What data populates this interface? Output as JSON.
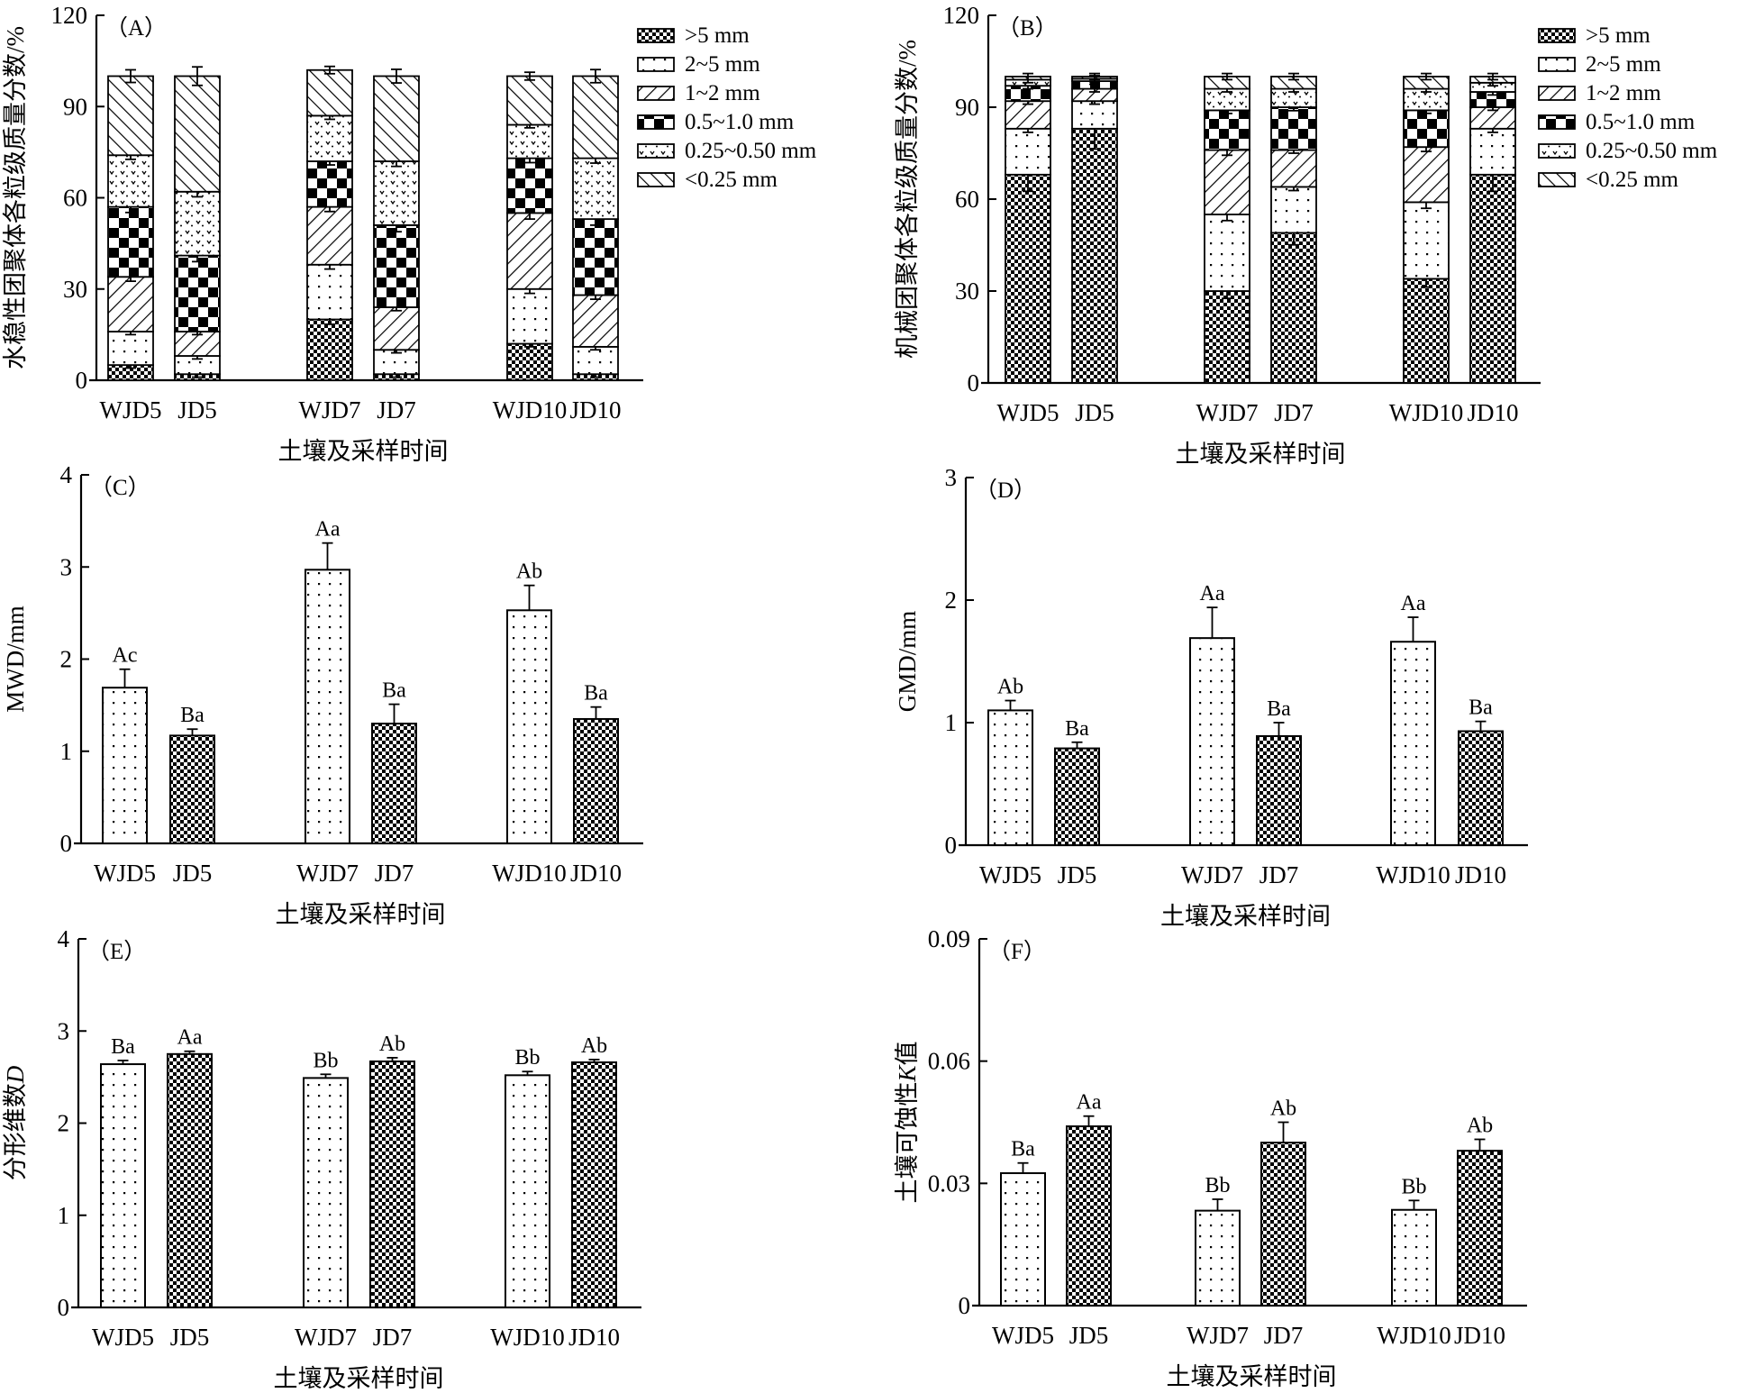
{
  "figure": {
    "categories": [
      "WJD5",
      "JD5",
      "WJD7",
      "JD7",
      "WJD10",
      "JD10"
    ],
    "patterns": {
      "gt5": "dense-checker",
      "2to5": "sparse-dots",
      "1to2": "forward-hatch",
      "0.5to1": "large-checker",
      "0.25to0.5": "v-dots",
      "lt0.25": "back-hatch",
      "WJD": "sparse-dots",
      "JD": "dense-checker"
    }
  },
  "chart_data": [
    {
      "id": "A",
      "type": "bar",
      "stacked": true,
      "panel_label": "（A）",
      "title": "",
      "xlabel": "土壤及采样时间",
      "ylabel": "水稳性团聚体各粒级质量分数/%",
      "ylim": [
        0,
        120
      ],
      "yticks": [
        "0",
        "30",
        "60",
        "90",
        "120"
      ],
      "ytick_values": [
        0,
        30,
        60,
        90,
        120
      ],
      "categories": [
        "WJD5",
        "JD5",
        "WJD7",
        "JD7",
        "WJD10",
        "JD10"
      ],
      "legend_position": "top-right",
      "series": [
        {
          "name": ">5 mm",
          "key": "gt5",
          "values": [
            5,
            2,
            20,
            2,
            12,
            2
          ]
        },
        {
          "name": "2~5 mm",
          "key": "2to5",
          "values": [
            11,
            6,
            18,
            8,
            18,
            9
          ]
        },
        {
          "name": "1~2 mm",
          "key": "1to2",
          "values": [
            18,
            8,
            19,
            14,
            25,
            17
          ]
        },
        {
          "name": "0.5~1.0 mm",
          "key": "0.5to1",
          "values": [
            23,
            25,
            15,
            27,
            18,
            25
          ]
        },
        {
          "name": "0.25~0.50 mm",
          "key": "0.25to0.5",
          "values": [
            17,
            21,
            15,
            21,
            11,
            20
          ]
        },
        {
          "name": "<0.25 mm",
          "key": "lt0.25",
          "values": [
            26,
            38,
            15,
            28,
            16,
            27
          ]
        }
      ]
    },
    {
      "id": "B",
      "type": "bar",
      "stacked": true,
      "panel_label": "（B）",
      "title": "",
      "xlabel": "土壤及采样时间",
      "ylabel": "机械团聚体各粒级质量分数/%",
      "ylim": [
        0,
        120
      ],
      "yticks": [
        "0",
        "30",
        "60",
        "90",
        "120"
      ],
      "ytick_values": [
        0,
        30,
        60,
        90,
        120
      ],
      "categories": [
        "WJD5",
        "JD5",
        "WJD7",
        "JD7",
        "WJD10",
        "JD10"
      ],
      "legend_position": "top-right",
      "series": [
        {
          "name": ">5 mm",
          "key": "gt5",
          "values": [
            68,
            83,
            30,
            49,
            34,
            68
          ]
        },
        {
          "name": "2~5 mm",
          "key": "2to5",
          "values": [
            15,
            9,
            25,
            15,
            25,
            15
          ]
        },
        {
          "name": "1~2 mm",
          "key": "1to2",
          "values": [
            9,
            4,
            21,
            12,
            18,
            7
          ]
        },
        {
          "name": "0.5~1.0 mm",
          "key": "0.5to1",
          "values": [
            5,
            2.5,
            13,
            14,
            12,
            5
          ]
        },
        {
          "name": "0.25~0.50 mm",
          "key": "0.25to0.5",
          "values": [
            2,
            0.8,
            7,
            6,
            7,
            3
          ]
        },
        {
          "name": "<0.25 mm",
          "key": "lt0.25",
          "values": [
            1,
            0.7,
            4,
            4,
            4,
            2
          ]
        }
      ]
    },
    {
      "id": "C",
      "type": "bar",
      "panel_label": "（C）",
      "title": "",
      "xlabel": "土壤及采样时间",
      "ylabel": "MWD/mm",
      "ylim": [
        0,
        4
      ],
      "yticks": [
        "0",
        "1",
        "2",
        "3",
        "4"
      ],
      "ytick_values": [
        0,
        1,
        2,
        3,
        4
      ],
      "categories": [
        "WJD5",
        "JD5",
        "WJD7",
        "JD7",
        "WJD10",
        "JD10"
      ],
      "values": [
        1.69,
        1.17,
        2.97,
        1.3,
        2.53,
        1.35
      ],
      "errors": [
        0.2,
        0.07,
        0.29,
        0.21,
        0.27,
        0.13
      ],
      "labels": [
        "Ac",
        "Ba",
        "Aa",
        "Ba",
        "Ab",
        "Ba"
      ]
    },
    {
      "id": "D",
      "type": "bar",
      "panel_label": "（D）",
      "title": "",
      "xlabel": "土壤及采样时间",
      "ylabel": "GMD/mm",
      "ylim": [
        0,
        3
      ],
      "yticks": [
        "0",
        "1",
        "2",
        "3"
      ],
      "ytick_values": [
        0,
        1,
        2,
        3
      ],
      "categories": [
        "WJD5",
        "JD5",
        "WJD7",
        "JD7",
        "WJD10",
        "JD10"
      ],
      "values": [
        1.1,
        0.79,
        1.69,
        0.89,
        1.66,
        0.93
      ],
      "errors": [
        0.08,
        0.05,
        0.25,
        0.11,
        0.2,
        0.08
      ],
      "labels": [
        "Ab",
        "Ba",
        "Aa",
        "Ba",
        "Aa",
        "Ba"
      ]
    },
    {
      "id": "E",
      "type": "bar",
      "panel_label": "（E）",
      "title": "",
      "xlabel": "土壤及采样时间",
      "ylabel": "分形维数D",
      "ylabel_italic_suffix": "D",
      "ylim": [
        0,
        4
      ],
      "yticks": [
        "0",
        "1",
        "2",
        "3",
        "4"
      ],
      "ytick_values": [
        0,
        1,
        2,
        3,
        4
      ],
      "categories": [
        "WJD5",
        "JD5",
        "WJD7",
        "JD7",
        "WJD10",
        "JD10"
      ],
      "values": [
        2.64,
        2.75,
        2.49,
        2.67,
        2.52,
        2.66
      ],
      "errors": [
        0.04,
        0.03,
        0.04,
        0.04,
        0.04,
        0.03
      ],
      "labels": [
        "Ba",
        "Aa",
        "Bb",
        "Ab",
        "Bb",
        "Ab"
      ]
    },
    {
      "id": "F",
      "type": "bar",
      "panel_label": "（F）",
      "title": "",
      "xlabel": "土壤及采样时间",
      "ylabel": "土壤可蚀性K值",
      "ylabel_italic_part": "K",
      "ylim": [
        0,
        0.09
      ],
      "yticks": [
        "0",
        "0.03",
        "0.06",
        "0.09"
      ],
      "ytick_values": [
        0,
        0.03,
        0.06,
        0.09
      ],
      "categories": [
        "WJD5",
        "JD5",
        "WJD7",
        "JD7",
        "WJD10",
        "JD10"
      ],
      "values": [
        0.0325,
        0.044,
        0.0233,
        0.04,
        0.0235,
        0.038
      ],
      "errors": [
        0.0025,
        0.0025,
        0.0028,
        0.005,
        0.0023,
        0.0028
      ],
      "labels": [
        "Ba",
        "Aa",
        "Bb",
        "Ab",
        "Bb",
        "Ab"
      ]
    }
  ]
}
